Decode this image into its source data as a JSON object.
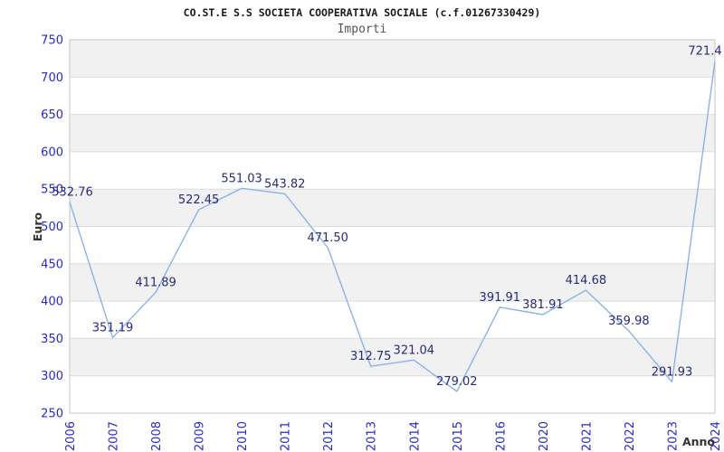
{
  "header": {
    "title": "CO.ST.E S.S SOCIETA COOPERATIVA SOCIALE (c.f.01267330429)",
    "subtitle": "Importi"
  },
  "chart_data": {
    "type": "line",
    "title": "CO.ST.E S.S SOCIETA COOPERATIVA SOCIALE (c.f.01267330429)",
    "subtitle": "Importi",
    "xlabel": "Anno",
    "ylabel": "Euro",
    "categories": [
      "2006",
      "2007",
      "2008",
      "2009",
      "2010",
      "2011",
      "2012",
      "2013",
      "2014",
      "2015",
      "2016",
      "2020",
      "2021",
      "2022",
      "2023",
      "2024"
    ],
    "series": [
      {
        "name": "Importi",
        "values": [
          532.76,
          351.19,
          411.89,
          522.45,
          551.03,
          543.82,
          471.5,
          312.75,
          321.04,
          279.02,
          391.91,
          381.91,
          414.68,
          359.98,
          291.93,
          721.4
        ]
      }
    ],
    "point_labels": [
      "532.76",
      "351.19",
      "411.89",
      "522.45",
      "551.03",
      "543.82",
      "471.50",
      "312.75",
      "321.04",
      "279.02",
      "391.91",
      "381.91",
      "414.68",
      "359.98",
      "291.93",
      "721.4"
    ],
    "ylim": [
      250,
      750
    ],
    "ytick_step": 50,
    "grid": "horizontal",
    "bands": "alternating",
    "legend": "none",
    "markers": "none",
    "colors": {
      "line": "#8ab4e8",
      "axis_tick_label": "#2727d4",
      "point_label": "#29297d",
      "band": "#f1f1f1",
      "gridline": "#dcdcdc",
      "plot_border": "#c6c6c6",
      "title": "#1a1a1a",
      "subtitle": "#555555",
      "axis_title": "#333333",
      "background": "#ffffff"
    }
  }
}
